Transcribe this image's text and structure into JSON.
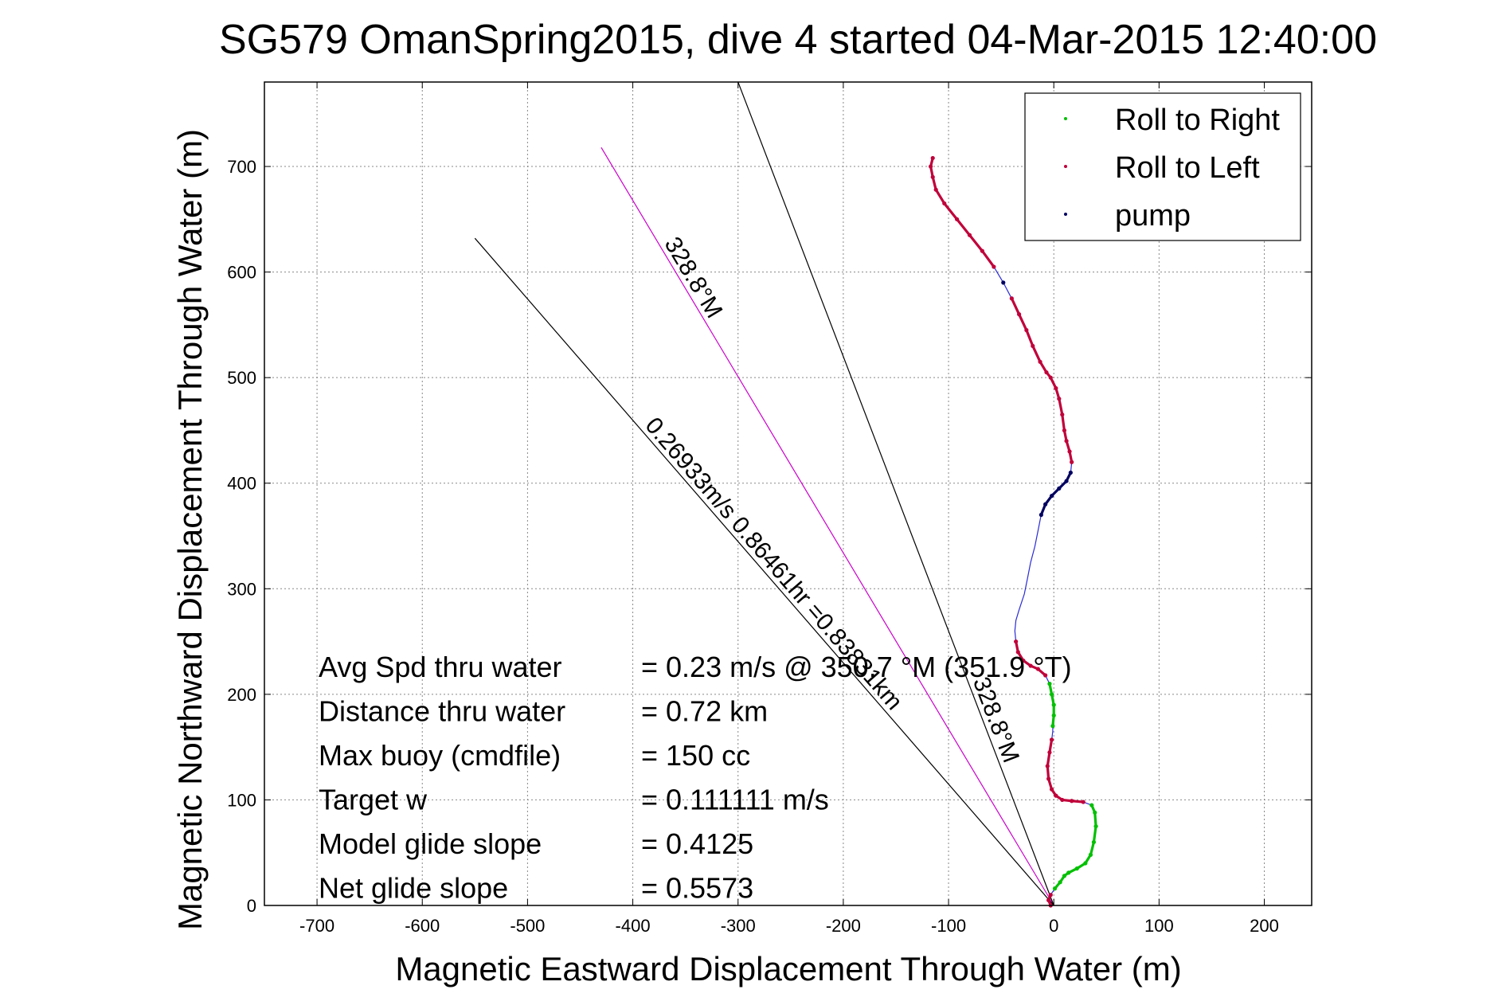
{
  "chart_data": {
    "type": "scatter",
    "title": "SG579 OmanSpring2015, dive 4 started 04-Mar-2015 12:40:00",
    "xlabel": "Magnetic Eastward Displacement Through Water (m)",
    "ylabel": "Magnetic Northward Displacement Through Water (m)",
    "xlim": [
      -750,
      245
    ],
    "ylim": [
      0,
      780
    ],
    "x_ticks": [
      -700,
      -600,
      -500,
      -400,
      -300,
      -200,
      -100,
      0,
      100,
      200
    ],
    "y_ticks": [
      0,
      100,
      200,
      300,
      400,
      500,
      600,
      700
    ],
    "grid": true,
    "legend_position": "top-right",
    "legend": [
      {
        "name": "Roll to Right",
        "color": "#00c000"
      },
      {
        "name": "Roll to Left",
        "color": "#c0003a"
      },
      {
        "name": "pump",
        "color": "#000060"
      }
    ],
    "track_base_color": "#2a2ad6",
    "track": [
      [
        -3,
        0
      ],
      [
        -5,
        5
      ],
      [
        -3,
        10
      ],
      [
        1,
        16
      ],
      [
        6,
        22
      ],
      [
        10,
        28
      ],
      [
        14,
        31
      ],
      [
        22,
        35
      ],
      [
        30,
        40
      ],
      [
        35,
        48
      ],
      [
        38,
        60
      ],
      [
        40,
        75
      ],
      [
        39,
        88
      ],
      [
        36,
        95
      ],
      [
        28,
        98
      ],
      [
        17,
        99
      ],
      [
        8,
        100
      ],
      [
        2,
        104
      ],
      [
        -2,
        110
      ],
      [
        -5,
        120
      ],
      [
        -6,
        132
      ],
      [
        -4,
        145
      ],
      [
        -2,
        157
      ],
      [
        -1,
        165
      ],
      [
        -1,
        170
      ],
      [
        0,
        180
      ],
      [
        0,
        190
      ],
      [
        -2,
        200
      ],
      [
        -4,
        210
      ],
      [
        -8,
        218
      ],
      [
        -15,
        224
      ],
      [
        -22,
        227
      ],
      [
        -29,
        232
      ],
      [
        -34,
        240
      ],
      [
        -36,
        250
      ],
      [
        -37,
        260
      ],
      [
        -36,
        270
      ],
      [
        -33,
        280
      ],
      [
        -28,
        295
      ],
      [
        -25,
        310
      ],
      [
        -22,
        325
      ],
      [
        -18,
        340
      ],
      [
        -15,
        355
      ],
      [
        -12,
        370
      ],
      [
        -8,
        380
      ],
      [
        -2,
        388
      ],
      [
        5,
        395
      ],
      [
        12,
        402
      ],
      [
        16,
        410
      ],
      [
        17,
        420
      ],
      [
        15,
        430
      ],
      [
        12,
        440
      ],
      [
        10,
        450
      ],
      [
        8,
        465
      ],
      [
        5,
        480
      ],
      [
        2,
        490
      ],
      [
        -3,
        500
      ],
      [
        -7,
        505
      ],
      [
        -13,
        515
      ],
      [
        -20,
        530
      ],
      [
        -26,
        545
      ],
      [
        -33,
        560
      ],
      [
        -40,
        575
      ],
      [
        -48,
        590
      ],
      [
        -57,
        605
      ],
      [
        -68,
        620
      ],
      [
        -80,
        635
      ],
      [
        -92,
        650
      ],
      [
        -104,
        665
      ],
      [
        -112,
        678
      ],
      [
        -115,
        690
      ],
      [
        -117,
        700
      ],
      [
        -115,
        708
      ]
    ],
    "series": [
      {
        "name": "Roll to Right",
        "color": "#00c000",
        "points": [
          [
            1,
            16
          ],
          [
            6,
            22
          ],
          [
            10,
            28
          ],
          [
            14,
            31
          ],
          [
            22,
            35
          ],
          [
            30,
            40
          ],
          [
            35,
            48
          ],
          [
            38,
            60
          ],
          [
            40,
            75
          ],
          [
            39,
            88
          ],
          [
            36,
            95
          ],
          [
            -1,
            170
          ],
          [
            0,
            180
          ],
          [
            0,
            190
          ],
          [
            -2,
            200
          ],
          [
            -4,
            210
          ]
        ]
      },
      {
        "name": "Roll to Left",
        "color": "#c0003a",
        "points": [
          [
            -3,
            0
          ],
          [
            -5,
            5
          ],
          [
            -3,
            10
          ],
          [
            28,
            98
          ],
          [
            17,
            99
          ],
          [
            8,
            100
          ],
          [
            2,
            104
          ],
          [
            -2,
            110
          ],
          [
            -5,
            120
          ],
          [
            -6,
            132
          ],
          [
            -4,
            145
          ],
          [
            -2,
            157
          ],
          [
            -8,
            218
          ],
          [
            -15,
            224
          ],
          [
            -22,
            227
          ],
          [
            -29,
            232
          ],
          [
            -34,
            240
          ],
          [
            -36,
            250
          ],
          [
            17,
            420
          ],
          [
            15,
            430
          ],
          [
            12,
            440
          ],
          [
            10,
            450
          ],
          [
            8,
            465
          ],
          [
            5,
            480
          ],
          [
            2,
            490
          ],
          [
            -3,
            500
          ],
          [
            -7,
            505
          ],
          [
            -13,
            515
          ],
          [
            -20,
            530
          ],
          [
            -26,
            545
          ],
          [
            -33,
            560
          ],
          [
            -40,
            575
          ],
          [
            -57,
            605
          ],
          [
            -68,
            620
          ],
          [
            -80,
            635
          ],
          [
            -92,
            650
          ],
          [
            -104,
            665
          ],
          [
            -112,
            678
          ],
          [
            -115,
            690
          ],
          [
            -117,
            700
          ],
          [
            -115,
            708
          ]
        ]
      },
      {
        "name": "pump",
        "color": "#000060",
        "points": [
          [
            -12,
            370
          ],
          [
            -8,
            380
          ],
          [
            -2,
            388
          ],
          [
            5,
            395
          ],
          [
            12,
            402
          ],
          [
            16,
            410
          ],
          [
            -48,
            590
          ]
        ]
      }
    ],
    "reference_lines": [
      {
        "from": [
          0,
          0
        ],
        "to": [
          -430,
          718
        ],
        "color": "#cc00cc",
        "label": "328.8°M"
      },
      {
        "from": [
          0,
          0
        ],
        "to": [
          -550,
          632
        ],
        "color": "#000000",
        "label": "0.26933m/s 0.86461hr =0.83831km"
      },
      {
        "from": [
          0,
          0
        ],
        "to": [
          -300,
          780
        ],
        "color": "#000000",
        "label": "328.8°M"
      }
    ],
    "annotations": [
      {
        "label": "Avg Spd thru water",
        "value": "=  0.23 m/s @ 350.7 °M (351.9 °T)"
      },
      {
        "label": "Distance thru water",
        "value": "=  0.72 km"
      },
      {
        "label": "Max buoy (cmdfile)",
        "value": "= 150 cc"
      },
      {
        "label": "Target w",
        "value": "= 0.111111 m/s"
      },
      {
        "label": "Model glide slope",
        "value": "= 0.4125"
      },
      {
        "label": "Net glide slope",
        "value": "= 0.5573"
      }
    ]
  }
}
